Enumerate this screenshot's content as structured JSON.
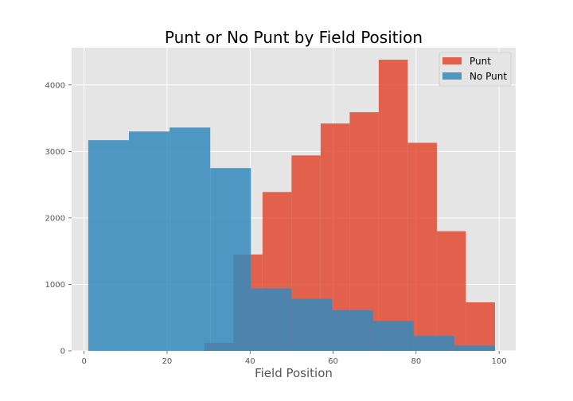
{
  "chart_data": {
    "type": "histogram",
    "title": "Punt or No Punt by Field Position",
    "xlabel": "Field Position",
    "ylabel": "",
    "xlim": [
      -3,
      104
    ],
    "ylim": [
      0,
      4560
    ],
    "x_ticks": [
      0,
      20,
      40,
      60,
      80,
      100
    ],
    "y_ticks": [
      0,
      1000,
      2000,
      3000,
      4000
    ],
    "grid": true,
    "legend_position": "top-right",
    "series": [
      {
        "name": "Punt",
        "color": "#E24A33",
        "opacity": 0.85,
        "bins": [
          {
            "x0": 29,
            "x1": 36,
            "value": 120
          },
          {
            "x0": 36,
            "x1": 43,
            "value": 1450
          },
          {
            "x0": 43,
            "x1": 50,
            "value": 2390
          },
          {
            "x0": 50,
            "x1": 57,
            "value": 2940
          },
          {
            "x0": 57,
            "x1": 64,
            "value": 3420
          },
          {
            "x0": 64,
            "x1": 71,
            "value": 3590
          },
          {
            "x0": 71,
            "x1": 78,
            "value": 4380
          },
          {
            "x0": 78,
            "x1": 85,
            "value": 3130
          },
          {
            "x0": 85,
            "x1": 92,
            "value": 1800
          },
          {
            "x0": 92,
            "x1": 99,
            "value": 730
          }
        ]
      },
      {
        "name": "No Punt",
        "color": "#348ABD",
        "opacity": 0.85,
        "bins": [
          {
            "x0": 1,
            "x1": 10.8,
            "value": 3170
          },
          {
            "x0": 10.8,
            "x1": 20.6,
            "value": 3300
          },
          {
            "x0": 20.6,
            "x1": 30.4,
            "value": 3360
          },
          {
            "x0": 30.4,
            "x1": 40.2,
            "value": 2750
          },
          {
            "x0": 40.2,
            "x1": 50,
            "value": 940
          },
          {
            "x0": 50,
            "x1": 59.8,
            "value": 780
          },
          {
            "x0": 59.8,
            "x1": 69.6,
            "value": 610
          },
          {
            "x0": 69.6,
            "x1": 79.4,
            "value": 450
          },
          {
            "x0": 79.4,
            "x1": 89.2,
            "value": 225
          },
          {
            "x0": 89.2,
            "x1": 99,
            "value": 80
          }
        ]
      }
    ]
  }
}
